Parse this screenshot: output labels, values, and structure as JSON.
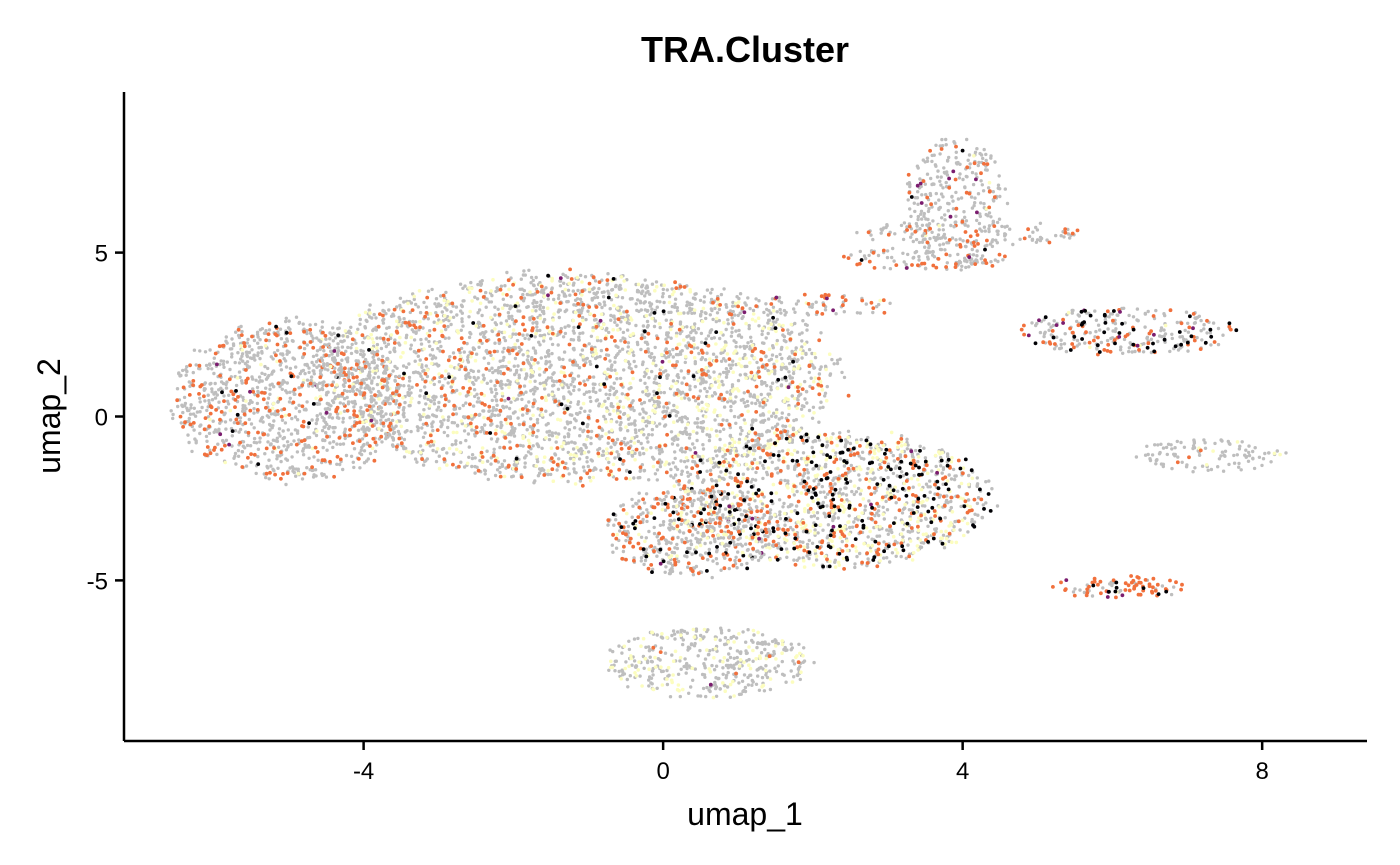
{
  "chart_data": {
    "type": "scatter",
    "title": "TRA.Cluster",
    "xlabel": "umap_1",
    "ylabel": "umap_2",
    "xlim": [
      -7.2,
      9.4
    ],
    "ylim": [
      -9.9,
      9.9
    ],
    "xticks": [
      -4,
      0,
      4,
      8
    ],
    "xtick_labels": [
      "-4",
      "0",
      "4",
      "8"
    ],
    "yticks": [
      5,
      0,
      -5
    ],
    "ytick_labels": [
      "5",
      "0",
      "-5"
    ],
    "grid": false,
    "legend": "none",
    "colors": {
      "background_cells": "#bebebe",
      "cat_yellow": "#fcfdbf",
      "cat_orange": "#f1703c",
      "cat_black": "#000004",
      "cat_purple": "#7b1d6f"
    },
    "regions": [
      {
        "name": "main_body",
        "cx": -1.2,
        "cy": 1.2,
        "rx": 3.6,
        "ry": 3.2,
        "density": 0.55
      },
      {
        "name": "left_tail",
        "cx": -5.0,
        "cy": 0.5,
        "rx": 1.6,
        "ry": 2.5,
        "density": 0.5
      },
      {
        "name": "lower_lobe",
        "cx": 2.2,
        "cy": -2.5,
        "rx": 2.2,
        "ry": 2.1,
        "density": 0.6
      },
      {
        "name": "lower_extension",
        "cx": 0.4,
        "cy": -3.5,
        "rx": 1.2,
        "ry": 1.4,
        "density": 0.5
      },
      {
        "name": "bottom_cluster",
        "cx": 0.6,
        "cy": -7.5,
        "rx": 1.4,
        "ry": 1.1,
        "density": 0.5
      },
      {
        "name": "top_right_arm",
        "cx": 3.9,
        "cy": 6.5,
        "rx": 0.7,
        "ry": 2.0,
        "density": 0.4
      },
      {
        "name": "upper_right_band",
        "cx": 4.1,
        "cy": 5.6,
        "rx": 1.5,
        "ry": 0.4,
        "density": 0.35
      },
      {
        "name": "mid_right_band",
        "cx": 3.5,
        "cy": 4.8,
        "rx": 1.3,
        "ry": 0.35,
        "density": 0.35
      },
      {
        "name": "small_band",
        "cx": 2.2,
        "cy": 3.4,
        "rx": 1.0,
        "ry": 0.35,
        "density": 0.35
      },
      {
        "name": "right_mid_cluster",
        "cx": 6.2,
        "cy": 2.6,
        "rx": 1.5,
        "ry": 0.75,
        "density": 0.45
      },
      {
        "name": "far_right_cluster",
        "cx": 7.3,
        "cy": -1.2,
        "rx": 1.0,
        "ry": 0.5,
        "density": 0.4
      },
      {
        "name": "orange_cluster",
        "cx": 6.1,
        "cy": -5.2,
        "rx": 0.9,
        "ry": 0.35,
        "density": 0.5
      }
    ],
    "category_mix": [
      {
        "region": "main_body",
        "yellow": 0.14,
        "orange": 0.1,
        "black": 0.01,
        "purple": 0.004
      },
      {
        "region": "left_tail",
        "yellow": 0.03,
        "orange": 0.18,
        "black": 0.01,
        "purple": 0.005
      },
      {
        "region": "lower_lobe",
        "yellow": 0.22,
        "orange": 0.15,
        "black": 0.12,
        "purple": 0.01
      },
      {
        "region": "lower_extension",
        "yellow": 0.05,
        "orange": 0.2,
        "black": 0.05,
        "purple": 0.005
      },
      {
        "region": "bottom_cluster",
        "yellow": 0.22,
        "orange": 0.01,
        "black": 0.005,
        "purple": 0.003
      },
      {
        "region": "top_right_arm",
        "yellow": 0.02,
        "orange": 0.12,
        "black": 0.01,
        "purple": 0.02
      },
      {
        "region": "upper_right_band",
        "yellow": 0.02,
        "orange": 0.22,
        "black": 0.01,
        "purple": 0.01
      },
      {
        "region": "mid_right_band",
        "yellow": 0.02,
        "orange": 0.3,
        "black": 0.02,
        "purple": 0.01
      },
      {
        "region": "small_band",
        "yellow": 0.02,
        "orange": 0.35,
        "black": 0.02,
        "purple": 0.05
      },
      {
        "region": "right_mid_cluster",
        "yellow": 0.02,
        "orange": 0.18,
        "black": 0.15,
        "purple": 0.04
      },
      {
        "region": "far_right_cluster",
        "yellow": 0.06,
        "orange": 0.01,
        "black": 0.005,
        "purple": 0.003
      },
      {
        "region": "orange_cluster",
        "yellow": 0.01,
        "orange": 0.6,
        "black": 0.06,
        "purple": 0.01
      }
    ]
  }
}
